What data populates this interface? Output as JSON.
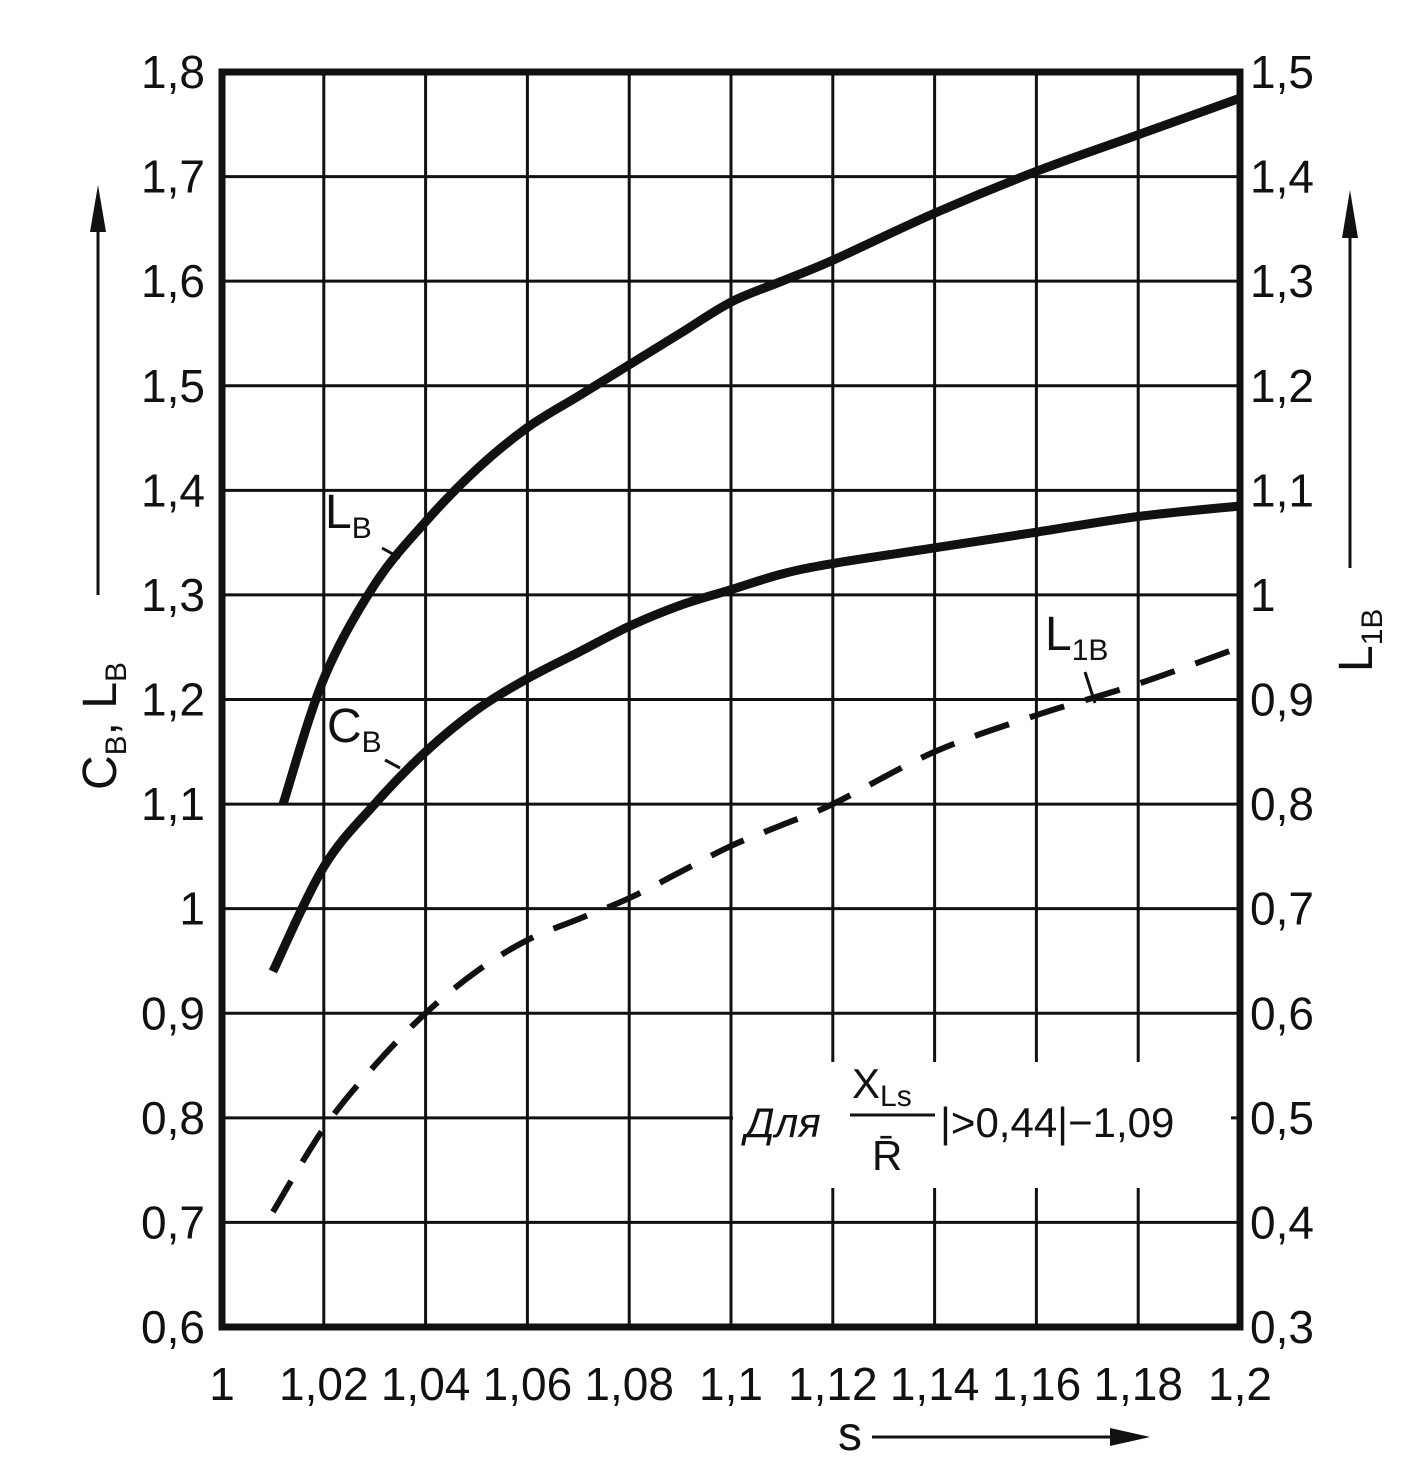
{
  "chart_data": {
    "type": "line",
    "xlabel": "s",
    "ylabel_left": {
      "main": "C",
      "sub1": "B",
      "sep": ", L",
      "sub2": "B"
    },
    "ylabel_right": {
      "main": "L",
      "sub": "1B"
    },
    "xlim": [
      1,
      1.2
    ],
    "ylim_left": [
      0.6,
      1.8
    ],
    "ylim_right": [
      0.3,
      1.5
    ],
    "grid": true,
    "x_ticks": [
      "1",
      "1,02",
      "1,04",
      "1,06",
      "1,08",
      "1,1",
      "1,12",
      "1,14",
      "1,16",
      "1,18",
      "1,2"
    ],
    "y_ticks_left": [
      "0,6",
      "0,7",
      "0,8",
      "0,9",
      "1",
      "1,1",
      "1,2",
      "1,3",
      "1,4",
      "1,5",
      "1,6",
      "1,7",
      "1,8"
    ],
    "y_ticks_right": [
      "0,3",
      "0,4",
      "0,5",
      "0,6",
      "0,7",
      "0,8",
      "0,9",
      "1",
      "1,1",
      "1,2",
      "1,3",
      "1,4",
      "1,5"
    ],
    "series": [
      {
        "name": "L",
        "sub": "B",
        "axis": "left",
        "style": "solid",
        "x": [
          1.012,
          1.02,
          1.03,
          1.04,
          1.05,
          1.06,
          1.07,
          1.08,
          1.09,
          1.1,
          1.11,
          1.12,
          1.14,
          1.16,
          1.18,
          1.2
        ],
        "y": [
          1.1,
          1.22,
          1.31,
          1.37,
          1.42,
          1.46,
          1.49,
          1.52,
          1.55,
          1.58,
          1.6,
          1.62,
          1.665,
          1.705,
          1.74,
          1.775
        ]
      },
      {
        "name": "C",
        "sub": "B",
        "axis": "left",
        "style": "solid",
        "x": [
          1.01,
          1.02,
          1.03,
          1.04,
          1.05,
          1.06,
          1.07,
          1.08,
          1.09,
          1.1,
          1.11,
          1.12,
          1.14,
          1.16,
          1.18,
          1.2
        ],
        "y": [
          0.94,
          1.04,
          1.1,
          1.15,
          1.19,
          1.22,
          1.245,
          1.27,
          1.29,
          1.305,
          1.32,
          1.33,
          1.345,
          1.36,
          1.375,
          1.385
        ]
      },
      {
        "name": "L",
        "sub": "1B",
        "axis": "right",
        "style": "dashed",
        "x": [
          1.01,
          1.02,
          1.03,
          1.04,
          1.05,
          1.06,
          1.07,
          1.08,
          1.09,
          1.1,
          1.11,
          1.12,
          1.14,
          1.16,
          1.18,
          1.2
        ],
        "y": [
          0.41,
          0.49,
          0.55,
          0.6,
          0.64,
          0.67,
          0.69,
          0.71,
          0.735,
          0.76,
          0.78,
          0.8,
          0.85,
          0.885,
          0.915,
          0.95
        ]
      }
    ],
    "annotation": {
      "prefix": "Для",
      "num_main": "X",
      "num_sub": "Ls",
      "den": "R̄",
      "rest": "|>0,44|−1,09"
    }
  }
}
